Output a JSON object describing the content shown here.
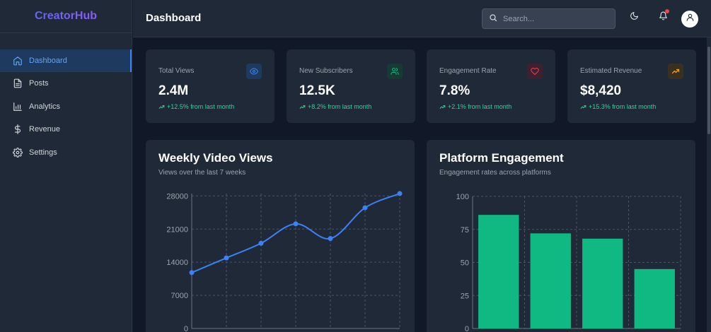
{
  "brand": "CreatorHub",
  "sidebar": {
    "items": [
      {
        "label": "Dashboard",
        "icon": "home-icon",
        "active": true
      },
      {
        "label": "Posts",
        "icon": "document-icon"
      },
      {
        "label": "Analytics",
        "icon": "bar-chart-icon"
      },
      {
        "label": "Revenue",
        "icon": "dollar-icon"
      },
      {
        "label": "Settings",
        "icon": "gear-icon"
      }
    ]
  },
  "header": {
    "title": "Dashboard",
    "search_placeholder": "Search..."
  },
  "stats": [
    {
      "label": "Total Views",
      "value": "2.4M",
      "change": "+12.5% from last month",
      "icon": "eye-icon",
      "icon_color": "#3b82f6",
      "icon_bg": "#1e3a5f"
    },
    {
      "label": "New Subscribers",
      "value": "12.5K",
      "change": "+8.2% from last month",
      "icon": "users-icon",
      "icon_color": "#10b981",
      "icon_bg": "#163a34"
    },
    {
      "label": "Engagement Rate",
      "value": "7.8%",
      "change": "+2.1% from last month",
      "icon": "heart-icon",
      "icon_color": "#ef4444",
      "icon_bg": "#3f2030"
    },
    {
      "label": "Estimated Revenue",
      "value": "$8,420",
      "change": "+15.3% from last month",
      "icon": "trending-up-icon",
      "icon_color": "#f59e0b",
      "icon_bg": "#3a3020"
    }
  ],
  "colors": {
    "line": "#3b82f6",
    "bar": "#10b981",
    "positive": "#34d399"
  },
  "chart_data": [
    {
      "type": "line",
      "title": "Weekly Video Views",
      "subtitle": "Views over the last 7 weeks",
      "x": [
        1,
        2,
        3,
        4,
        5,
        6,
        7
      ],
      "values": [
        11800,
        14900,
        18000,
        22100,
        19000,
        25500,
        28500
      ],
      "yticks": [
        0,
        7000,
        14000,
        21000,
        28000
      ],
      "ylim": [
        0,
        28500
      ],
      "grid": true
    },
    {
      "type": "bar",
      "title": "Platform Engagement",
      "subtitle": "Engagement rates across platforms",
      "values": [
        86,
        72,
        68,
        45
      ],
      "yticks": [
        0,
        25,
        50,
        75,
        100
      ],
      "ylim": [
        0,
        100
      ],
      "grid": true
    }
  ]
}
